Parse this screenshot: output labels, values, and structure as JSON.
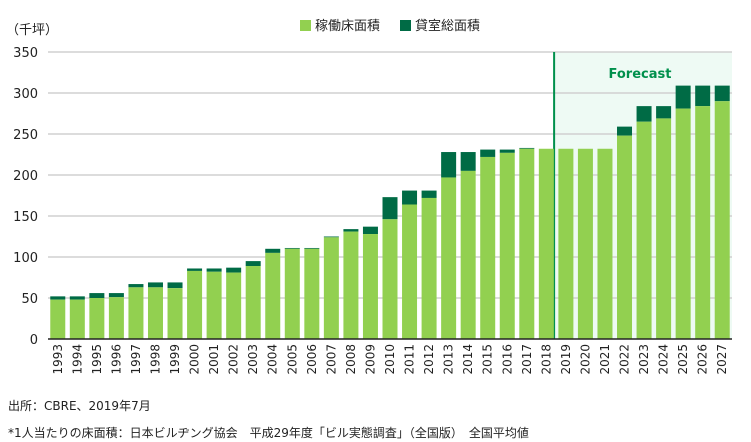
{
  "chart_data": {
    "type": "bar",
    "stacked": true,
    "unit_label": "（千坪）",
    "categories": [
      "1993",
      "1994",
      "1995",
      "1996",
      "1997",
      "1998",
      "1999",
      "2000",
      "2001",
      "2002",
      "2003",
      "2004",
      "2005",
      "2006",
      "2007",
      "2008",
      "2009",
      "2010",
      "2011",
      "2012",
      "2013",
      "2014",
      "2015",
      "2016",
      "2017",
      "2018",
      "2019",
      "2020",
      "2021",
      "2022",
      "2023",
      "2024",
      "2025",
      "2026",
      "2027"
    ],
    "series": [
      {
        "name": "稼働床面積",
        "color": "#92d050",
        "values": [
          48,
          48,
          50,
          51,
          63,
          63,
          62,
          83,
          82,
          81,
          89,
          105,
          110,
          110,
          124,
          131,
          128,
          146,
          164,
          172,
          197,
          205,
          222,
          227,
          232,
          232,
          232,
          232,
          232,
          248,
          265,
          269,
          281,
          284,
          290
        ]
      },
      {
        "name": "貸室総面積",
        "color": "#006b45",
        "total_values": [
          52,
          52,
          56,
          56,
          67,
          69,
          69,
          86,
          86,
          87,
          95,
          110,
          111,
          111,
          125,
          134,
          137,
          173,
          181,
          181,
          228,
          228,
          231,
          231,
          233,
          232,
          232,
          232,
          232,
          259,
          284,
          284,
          309,
          309,
          309
        ]
      }
    ],
    "ylim": [
      0,
      350
    ],
    "yticks": [
      0,
      50,
      100,
      150,
      200,
      250,
      300,
      350
    ],
    "grid": true,
    "legend": "top-center",
    "forecast": {
      "label": "Forecast",
      "start_category": "2019",
      "color": "#00904c"
    }
  },
  "notes": {
    "source": "出所：CBRE、2019年7月",
    "footnote": "*1人当たりの床面積：日本ビルヂング協会　平成29年度「ビル実態調査」（全国版）　全国平均値"
  }
}
